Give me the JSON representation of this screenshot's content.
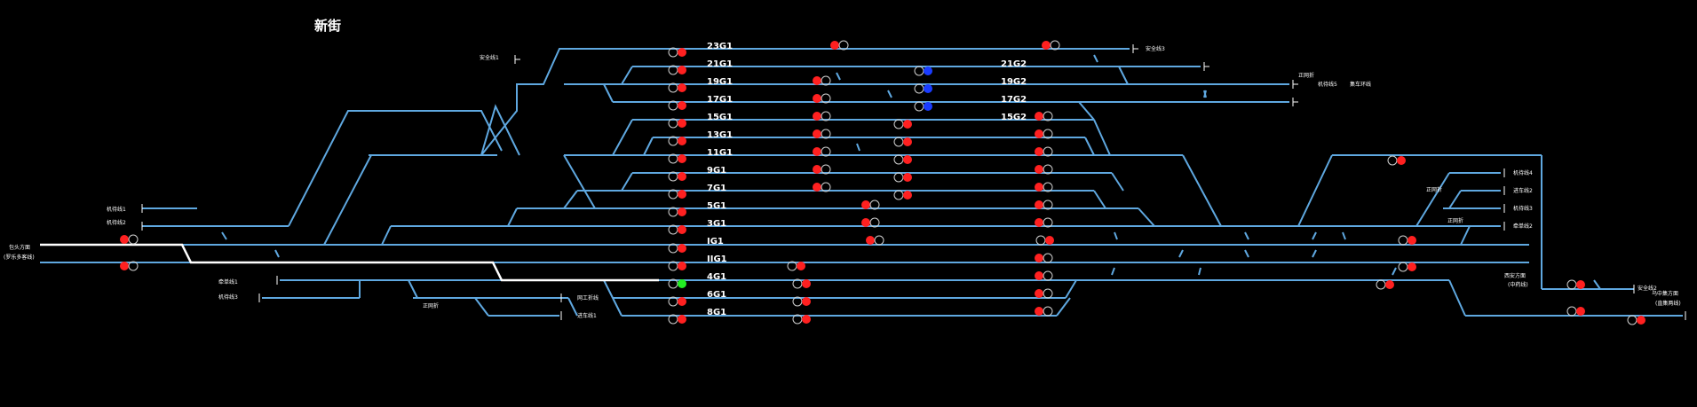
{
  "station": {
    "title": "新街"
  },
  "colors": {
    "track": "#5fa8e0",
    "route": "#ffffff",
    "red": "#ff2020",
    "blue": "#1a3cff",
    "green": "#22ee22",
    "background": "#000000"
  },
  "tracks": [
    {
      "id": "23G1",
      "label": "23G1"
    },
    {
      "id": "21G1",
      "label": "21G1"
    },
    {
      "id": "19G1",
      "label": "19G1"
    },
    {
      "id": "17G1",
      "label": "17G1"
    },
    {
      "id": "15G1",
      "label": "15G1"
    },
    {
      "id": "13G1",
      "label": "13G1"
    },
    {
      "id": "11G1",
      "label": "11G1"
    },
    {
      "id": "9G1",
      "label": "9G1"
    },
    {
      "id": "7G1",
      "label": "7G1"
    },
    {
      "id": "5G1",
      "label": "5G1"
    },
    {
      "id": "3G1",
      "label": "3G1"
    },
    {
      "id": "IG1",
      "label": "IG1"
    },
    {
      "id": "IIG1",
      "label": "IIG1"
    },
    {
      "id": "4G1",
      "label": "4G1"
    },
    {
      "id": "6G1",
      "label": "6G1"
    },
    {
      "id": "8G1",
      "label": "8G1"
    },
    {
      "id": "21G2",
      "label": "21G2"
    },
    {
      "id": "19G2",
      "label": "19G2"
    },
    {
      "id": "17G2",
      "label": "17G2"
    },
    {
      "id": "15G2",
      "label": "15G2"
    }
  ],
  "lines": {
    "l_anquan1": "安全线1",
    "l_anquan3": "安全线3",
    "l_zhengbei_top": "正网折",
    "l_jiyun5": "机待线5",
    "l_jiche": "集车环线",
    "l_jiyun1": "机待线1",
    "l_jiyun2": "机待线2",
    "l_baotou": "包头方面",
    "l_baotou_sub": "(罗乐多客线)",
    "l_chengche1": "牵单线1",
    "l_jiyun3": "机待线3",
    "l_zhengwang_low": "正网折",
    "l_gongdi": "网工折线",
    "l_jinche1": "进车线1",
    "l_jiyun4": "机待线4",
    "l_zhengwang_r1": "正网折",
    "l_jinche2": "进车线2",
    "l_jiyun_r": "机待线3",
    "l_zhengwang_r2": "正网折",
    "l_chengche2": "牵单线2",
    "l_xian_dir": "西安方面",
    "l_xian_sub": "(中药线)",
    "l_anquan2": "安全线2",
    "l_wuzhong": "乌中集方面",
    "l_wuzhong_sub": "(直集两线)"
  }
}
